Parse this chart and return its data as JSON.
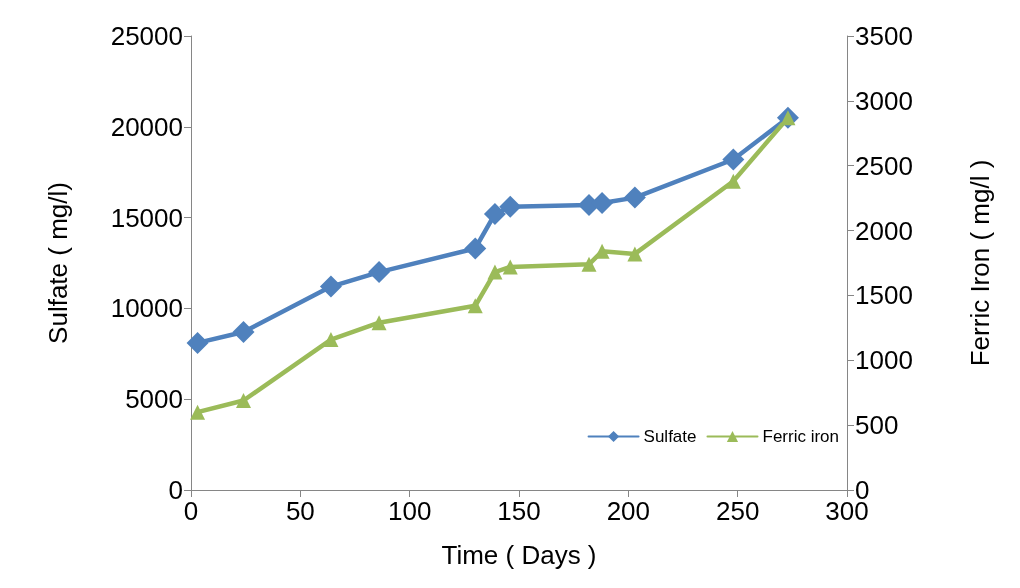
{
  "chart_data": {
    "type": "line",
    "xlabel": "Time ( Days )",
    "ylabel": "Sulfate ( mg/l)",
    "y2label": "Ferric Iron ( mg/l )",
    "x": [
      3,
      24,
      64,
      86,
      130,
      139,
      146,
      182,
      188,
      203,
      248,
      273
    ],
    "series": [
      {
        "name": "Sulfate",
        "color": "#4f81bd",
        "marker": "diamond",
        "values": [
          8100,
          8700,
          11200,
          12000,
          13300,
          15200,
          15600,
          15700,
          15800,
          16100,
          18200,
          20500
        ]
      },
      {
        "name": "Ferric iron",
        "color": "#9bbb59",
        "marker": "triangle",
        "axis": "y2",
        "values": [
          600,
          690,
          1160,
          1290,
          1420,
          1680,
          1720,
          1740,
          1840,
          1820,
          2380,
          2870
        ]
      }
    ],
    "xlim": [
      0,
      300
    ],
    "xticks": [
      0,
      50,
      100,
      150,
      200,
      250,
      300
    ],
    "ylim": [
      0,
      25000
    ],
    "yticks": [
      0,
      5000,
      10000,
      15000,
      20000,
      25000
    ],
    "y2lim": [
      0,
      3500
    ],
    "y2ticks": [
      0,
      500,
      1000,
      1500,
      2000,
      2500,
      3000,
      3500
    ],
    "grid": false,
    "legend": "bottom right",
    "line_style": "solid"
  }
}
